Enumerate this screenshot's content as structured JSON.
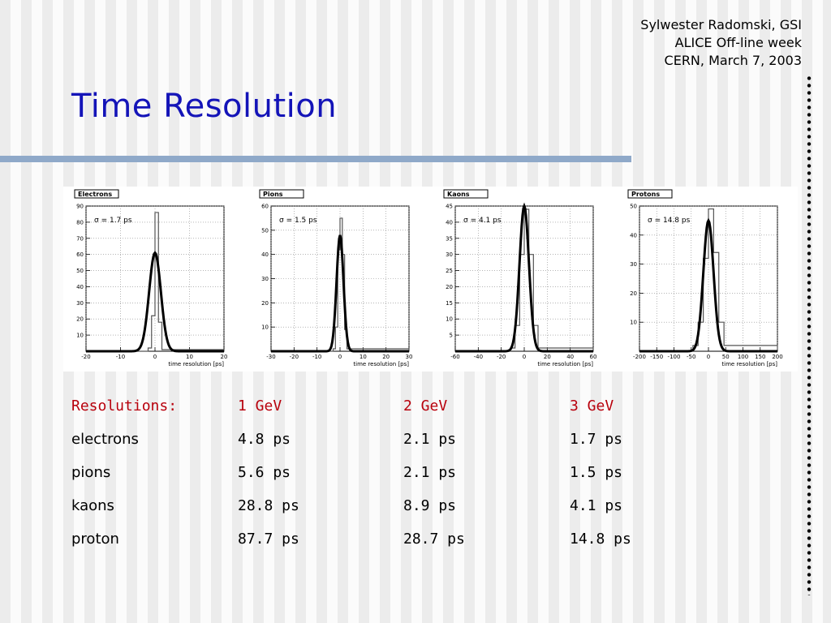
{
  "header": {
    "author": "Sylwester Radomski, GSI",
    "event": "ALICE Off-line week",
    "place_date": "CERN, March 7, 2003"
  },
  "title": "Time Resolution",
  "chart_data": [
    {
      "type": "histogram",
      "tag": "Electrons",
      "annotation": "σ = 1.7 ps",
      "sigma": 1.7,
      "xlabel": "time resolution [ps]",
      "xlim": [
        -20,
        20
      ],
      "xticks": [
        -20,
        -10,
        0,
        10,
        20
      ],
      "ylim": [
        0,
        90
      ],
      "yticks": [
        10,
        20,
        30,
        40,
        50,
        60,
        70,
        80,
        90
      ],
      "peak": 86,
      "fit_peak": 61,
      "bins": [
        [
          -20,
          0
        ],
        [
          -2,
          2
        ],
        [
          -1,
          22
        ],
        [
          0,
          86
        ],
        [
          1,
          18
        ],
        [
          2,
          1
        ],
        [
          20,
          0
        ]
      ],
      "grid": true
    },
    {
      "type": "histogram",
      "tag": "Pions",
      "annotation": "σ = 1.5 ps",
      "sigma": 1.5,
      "xlabel": "time resolution [ps]",
      "xlim": [
        -30,
        30
      ],
      "xticks": [
        -30,
        -20,
        -10,
        0,
        10,
        20,
        30
      ],
      "ylim": [
        0,
        60
      ],
      "yticks": [
        10,
        20,
        30,
        40,
        50,
        60
      ],
      "peak": 55,
      "fit_peak": 48,
      "bins": [
        [
          -30,
          0
        ],
        [
          -3,
          1
        ],
        [
          -2,
          10
        ],
        [
          -1,
          42
        ],
        [
          0,
          55
        ],
        [
          1,
          40
        ],
        [
          2,
          9
        ],
        [
          3,
          1
        ],
        [
          30,
          0
        ]
      ],
      "grid": true
    },
    {
      "type": "histogram",
      "tag": "Kaons",
      "annotation": "σ = 4.1 ps",
      "sigma": 4.1,
      "xlabel": "time resolution [ps]",
      "xlim": [
        -60,
        60
      ],
      "xticks": [
        -60,
        -40,
        -20,
        0,
        20,
        40,
        60
      ],
      "ylim": [
        0,
        45
      ],
      "yticks": [
        5,
        10,
        15,
        20,
        25,
        30,
        35,
        40,
        45
      ],
      "peak": 44,
      "fit_peak": 45,
      "bins": [
        [
          -60,
          0
        ],
        [
          -12,
          1
        ],
        [
          -8,
          8
        ],
        [
          -4,
          30
        ],
        [
          0,
          44
        ],
        [
          4,
          30
        ],
        [
          8,
          8
        ],
        [
          12,
          1
        ],
        [
          60,
          0
        ]
      ],
      "grid": true
    },
    {
      "type": "histogram",
      "tag": "Protons",
      "annotation": "σ = 14.8 ps",
      "sigma": 14.8,
      "xlabel": "time resolution [ps]",
      "xlim": [
        -200,
        200
      ],
      "xticks": [
        -200,
        -150,
        -100,
        -50,
        0,
        50,
        100,
        150,
        200
      ],
      "ylim": [
        0,
        50
      ],
      "yticks": [
        10,
        20,
        30,
        40,
        50
      ],
      "peak": 49,
      "fit_peak": 45,
      "bins": [
        [
          -200,
          0
        ],
        [
          -45,
          2
        ],
        [
          -30,
          10
        ],
        [
          -15,
          32
        ],
        [
          0,
          49
        ],
        [
          15,
          34
        ],
        [
          30,
          10
        ],
        [
          45,
          2
        ],
        [
          200,
          0
        ]
      ],
      "grid": true
    }
  ],
  "table": {
    "headers": [
      "Resolutions:",
      "1 GeV",
      "2 GeV",
      "3 GeV"
    ],
    "rows": [
      [
        "electrons",
        "4.8 ps",
        "2.1 ps",
        "1.7 ps"
      ],
      [
        "pions",
        "5.6 ps",
        "2.1 ps",
        "1.5 ps"
      ],
      [
        "kaons",
        "28.8 ps",
        "8.9 ps",
        "4.1 ps"
      ],
      [
        "proton",
        "87.7 ps",
        "28.7 ps",
        "14.8 ps"
      ]
    ]
  },
  "colors": {
    "title": "#1414b8",
    "table_header": "#b8000c",
    "rule": "#8fa9c9",
    "fit": "#000000",
    "histogram": "#555555"
  }
}
